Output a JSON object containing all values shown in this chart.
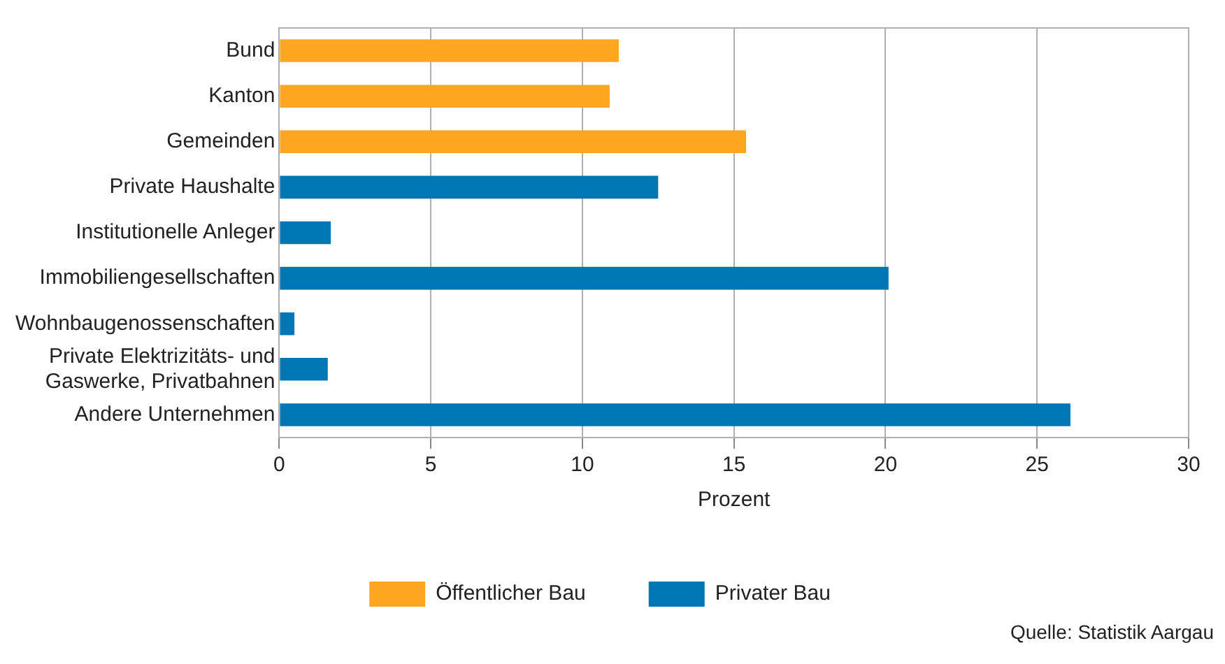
{
  "chart_data": {
    "type": "bar",
    "orientation": "horizontal",
    "stacked": true,
    "categories": [
      "Bund",
      "Kanton",
      "Gemeinden",
      "Private Haushalte",
      "Institutionelle Anleger",
      "Immobiliengesellschaften",
      "Wohnbaugenossenschaften",
      "Private Elektrizitäts- und\nGaswerke, Privatbahnen",
      "Andere Unternehmen"
    ],
    "series": [
      {
        "name": "Öffentlicher Bau",
        "color": "#ffa620",
        "values": [
          11.2,
          10.9,
          15.4,
          null,
          null,
          null,
          null,
          null,
          null
        ]
      },
      {
        "name": "Privater Bau",
        "color": "#0076b5",
        "values": [
          null,
          null,
          null,
          12.5,
          1.7,
          20.1,
          0.5,
          1.6,
          26.1
        ]
      }
    ],
    "xlabel": "Prozent",
    "xlim": [
      0,
      30
    ],
    "xticks": [
      0,
      5,
      10,
      15,
      20,
      25,
      30
    ],
    "grid": "x",
    "legend": "bottom",
    "annotations": [
      "Quelle: Statistik Aargau"
    ]
  }
}
